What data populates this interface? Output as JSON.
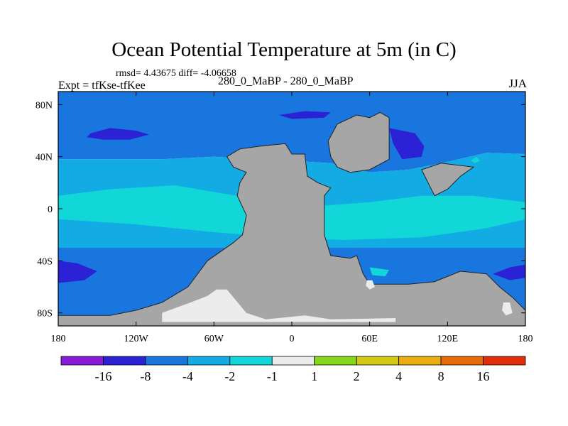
{
  "chart_data": {
    "type": "heatmap",
    "title": "Ocean Potential Temperature at 5m (in C)",
    "stats_text": "rmsd= 4.43675 diff= -4.06658",
    "left_subtitle": "Expt = tfKse-tfKee",
    "center_subtitle": "280_0_MaBP - 280_0_MaBP",
    "right_subtitle": "JJA",
    "x_range": [
      -180,
      180
    ],
    "y_range": [
      -90,
      90
    ],
    "x_ticks": [
      {
        "value": -180,
        "label": "180"
      },
      {
        "value": -120,
        "label": "120W"
      },
      {
        "value": -60,
        "label": "60W"
      },
      {
        "value": 0,
        "label": "0"
      },
      {
        "value": 60,
        "label": "60E"
      },
      {
        "value": 120,
        "label": "120E"
      },
      {
        "value": 180,
        "label": "180"
      }
    ],
    "y_ticks": [
      {
        "value": 80,
        "label": "80N"
      },
      {
        "value": 40,
        "label": "40N"
      },
      {
        "value": 0,
        "label": "0"
      },
      {
        "value": -40,
        "label": "40S"
      },
      {
        "value": -80,
        "label": "80S"
      }
    ],
    "colorbar": {
      "boundaries": [
        "-16",
        "-8",
        "-4",
        "-2",
        "-1",
        "1",
        "2",
        "4",
        "8",
        "16"
      ],
      "colors": [
        "#8a1ad9",
        "#2a22d4",
        "#1976de",
        "#13abe3",
        "#11d7d8",
        "#ececec",
        "#86d619",
        "#d4ca13",
        "#ebac0f",
        "#e86a0b",
        "#e12d0a"
      ]
    },
    "land_color": "#a6a6a6",
    "regions": [
      {
        "name": "northern-ocean",
        "value_class": "-8 to -4",
        "points": [
          [
            -180,
            90
          ],
          [
            180,
            90
          ],
          [
            180,
            42
          ],
          [
            150,
            43
          ],
          [
            120,
            36
          ],
          [
            90,
            30
          ],
          [
            60,
            28
          ],
          [
            30,
            35
          ],
          [
            -20,
            38
          ],
          [
            -60,
            40
          ],
          [
            -100,
            38
          ],
          [
            -140,
            38
          ],
          [
            -180,
            38
          ]
        ]
      },
      {
        "name": "equatorial-band",
        "value_class": "-4 to -2",
        "points": [
          [
            -180,
            38
          ],
          [
            -140,
            38
          ],
          [
            -100,
            38
          ],
          [
            -60,
            40
          ],
          [
            -20,
            38
          ],
          [
            30,
            35
          ],
          [
            60,
            28
          ],
          [
            90,
            30
          ],
          [
            120,
            36
          ],
          [
            150,
            43
          ],
          [
            180,
            42
          ],
          [
            180,
            -30
          ],
          [
            -180,
            -30
          ]
        ]
      },
      {
        "name": "southern-ocean",
        "value_class": "-8 to -4",
        "points": [
          [
            -180,
            -30
          ],
          [
            180,
            -30
          ],
          [
            180,
            -90
          ],
          [
            -180,
            -90
          ]
        ]
      },
      {
        "name": "central-warm-pool",
        "value_class": "-2 to -1",
        "points": [
          [
            -140,
            15
          ],
          [
            -90,
            18
          ],
          [
            -55,
            12
          ],
          [
            -30,
            8
          ],
          [
            20,
            2
          ],
          [
            60,
            5
          ],
          [
            100,
            10
          ],
          [
            140,
            10
          ],
          [
            180,
            5
          ],
          [
            180,
            -8
          ],
          [
            150,
            -15
          ],
          [
            100,
            -22
          ],
          [
            40,
            -24
          ],
          [
            -10,
            -22
          ],
          [
            -60,
            -18
          ],
          [
            -120,
            -12
          ],
          [
            -180,
            -8
          ],
          [
            -180,
            10
          ]
        ]
      },
      {
        "name": "north-pacific-cold-patch",
        "value_class": "-16 to -8",
        "points": [
          [
            -155,
            58
          ],
          [
            -140,
            62
          ],
          [
            -120,
            60
          ],
          [
            -110,
            57
          ],
          [
            -125,
            53
          ],
          [
            -145,
            53
          ],
          [
            -158,
            55
          ]
        ]
      },
      {
        "name": "arctic-cold-patch",
        "value_class": "-16 to -8",
        "points": [
          [
            -10,
            72
          ],
          [
            10,
            75
          ],
          [
            30,
            74
          ],
          [
            25,
            70
          ],
          [
            0,
            69
          ]
        ]
      },
      {
        "name": "ne-cold-patch",
        "value_class": "-16 to -8",
        "points": [
          [
            75,
            62
          ],
          [
            95,
            58
          ],
          [
            102,
            48
          ],
          [
            100,
            40
          ],
          [
            85,
            38
          ],
          [
            78,
            50
          ]
        ]
      },
      {
        "name": "sw-cold-patch",
        "value_class": "-16 to -8",
        "points": [
          [
            -180,
            -40
          ],
          [
            -165,
            -42
          ],
          [
            -150,
            -48
          ],
          [
            -160,
            -55
          ],
          [
            -180,
            -57
          ]
        ]
      },
      {
        "name": "se-cold-patch",
        "value_class": "-16 to -8",
        "points": [
          [
            180,
            -43
          ],
          [
            168,
            -45
          ],
          [
            155,
            -50
          ],
          [
            168,
            -55
          ],
          [
            180,
            -53
          ]
        ]
      },
      {
        "name": "western-continent",
        "value_class": "land",
        "points": [
          [
            -50,
            40
          ],
          [
            -40,
            46
          ],
          [
            -25,
            48
          ],
          [
            -5,
            50
          ],
          [
            0,
            42
          ],
          [
            10,
            42
          ],
          [
            12,
            25
          ],
          [
            20,
            20
          ],
          [
            30,
            16
          ],
          [
            25,
            10
          ],
          [
            25,
            -20
          ],
          [
            30,
            -36
          ],
          [
            45,
            -38
          ],
          [
            50,
            -36
          ],
          [
            55,
            -50
          ],
          [
            60,
            -58
          ],
          [
            90,
            -58
          ],
          [
            110,
            -56
          ],
          [
            130,
            -48
          ],
          [
            150,
            -50
          ],
          [
            160,
            -60
          ],
          [
            170,
            -68
          ],
          [
            180,
            -78
          ],
          [
            180,
            -90
          ],
          [
            -180,
            -90
          ],
          [
            -180,
            -82
          ],
          [
            -140,
            -82
          ],
          [
            -120,
            -78
          ],
          [
            -100,
            -72
          ],
          [
            -80,
            -60
          ],
          [
            -65,
            -40
          ],
          [
            -45,
            -26
          ],
          [
            -38,
            -20
          ],
          [
            -36,
            -10
          ],
          [
            -35,
            -5
          ],
          [
            -42,
            10
          ],
          [
            -40,
            20
          ],
          [
            -35,
            28
          ],
          [
            -45,
            32
          ]
        ]
      },
      {
        "name": "northern-continent",
        "value_class": "land",
        "points": [
          [
            28,
            52
          ],
          [
            35,
            65
          ],
          [
            50,
            72
          ],
          [
            60,
            70
          ],
          [
            68,
            74
          ],
          [
            75,
            70
          ],
          [
            75,
            38
          ],
          [
            60,
            30
          ],
          [
            45,
            28
          ],
          [
            35,
            32
          ],
          [
            30,
            40
          ]
        ]
      },
      {
        "name": "eastern-landmass",
        "value_class": "land",
        "points": [
          [
            105,
            20
          ],
          [
            100,
            30
          ],
          [
            115,
            35
          ],
          [
            140,
            32
          ],
          [
            130,
            25
          ],
          [
            120,
            15
          ],
          [
            110,
            10
          ]
        ]
      },
      {
        "name": "antarctic-ice-shelf",
        "value_class": "1 to -1",
        "points": [
          [
            -58,
            -62
          ],
          [
            -50,
            -62
          ],
          [
            -35,
            -80
          ],
          [
            -20,
            -85
          ],
          [
            10,
            -82
          ],
          [
            30,
            -85
          ],
          [
            80,
            -84
          ],
          [
            80,
            -87
          ],
          [
            -100,
            -87
          ],
          [
            -100,
            -80
          ],
          [
            -78,
            -72
          ],
          [
            -65,
            -67
          ]
        ]
      },
      {
        "name": "eastern-ice-patch",
        "value_class": "1 to -1",
        "points": [
          [
            58,
            -55
          ],
          [
            62,
            -55
          ],
          [
            64,
            -60
          ],
          [
            60,
            -62
          ],
          [
            57,
            -59
          ]
        ]
      },
      {
        "name": "far-east-ice-patch",
        "value_class": "1 to -1",
        "points": [
          [
            163,
            -72
          ],
          [
            168,
            -72
          ],
          [
            170,
            -80
          ],
          [
            165,
            -82
          ],
          [
            162,
            -78
          ]
        ]
      },
      {
        "name": "small-cyan-feature-1",
        "value_class": "-2 to -1",
        "points": [
          [
            138,
            37
          ],
          [
            142,
            40
          ],
          [
            145,
            37
          ],
          [
            141,
            35
          ]
        ]
      },
      {
        "name": "small-cyan-feature-2",
        "value_class": "-2 to -1",
        "points": [
          [
            60,
            -45
          ],
          [
            75,
            -47
          ],
          [
            72,
            -52
          ],
          [
            62,
            -51
          ]
        ]
      }
    ]
  }
}
